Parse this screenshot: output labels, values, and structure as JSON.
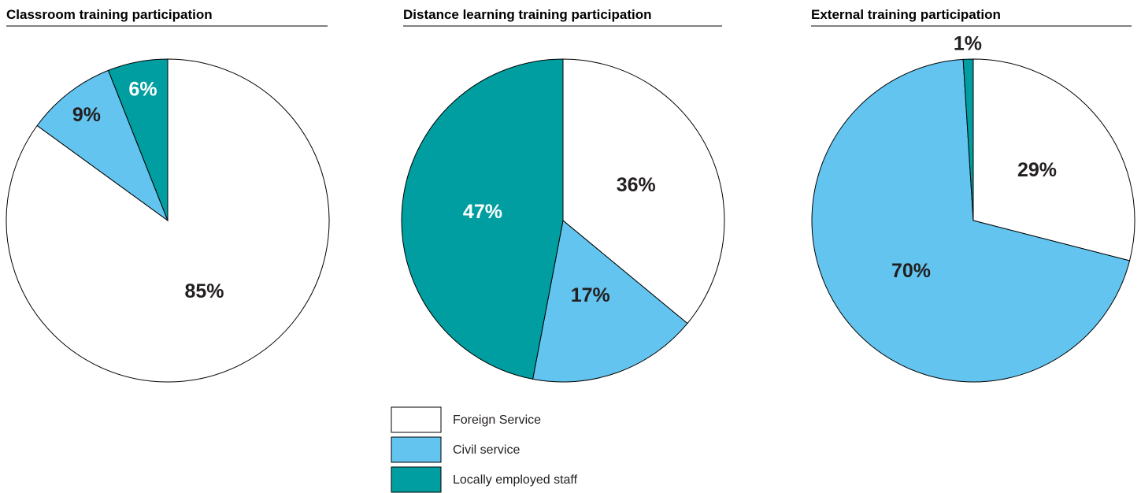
{
  "chart_data": [
    {
      "type": "pie",
      "title": "Classroom training participation",
      "values": [
        85,
        9,
        6
      ],
      "value_labels": [
        "85%",
        "9%",
        "6%"
      ]
    },
    {
      "type": "pie",
      "title": "Distance learning training participation",
      "values": [
        36,
        17,
        47
      ],
      "value_labels": [
        "36%",
        "17%",
        "47%"
      ]
    },
    {
      "type": "pie",
      "title": "External training participation",
      "values": [
        29,
        70,
        1
      ],
      "value_labels": [
        "29%",
        "70%",
        "1%"
      ]
    }
  ],
  "legend": {
    "categories": [
      "Foreign Service",
      "Civil service",
      "Locally employed staff"
    ],
    "colors": [
      "#ffffff",
      "#63c5ef",
      "#009ea0"
    ]
  }
}
